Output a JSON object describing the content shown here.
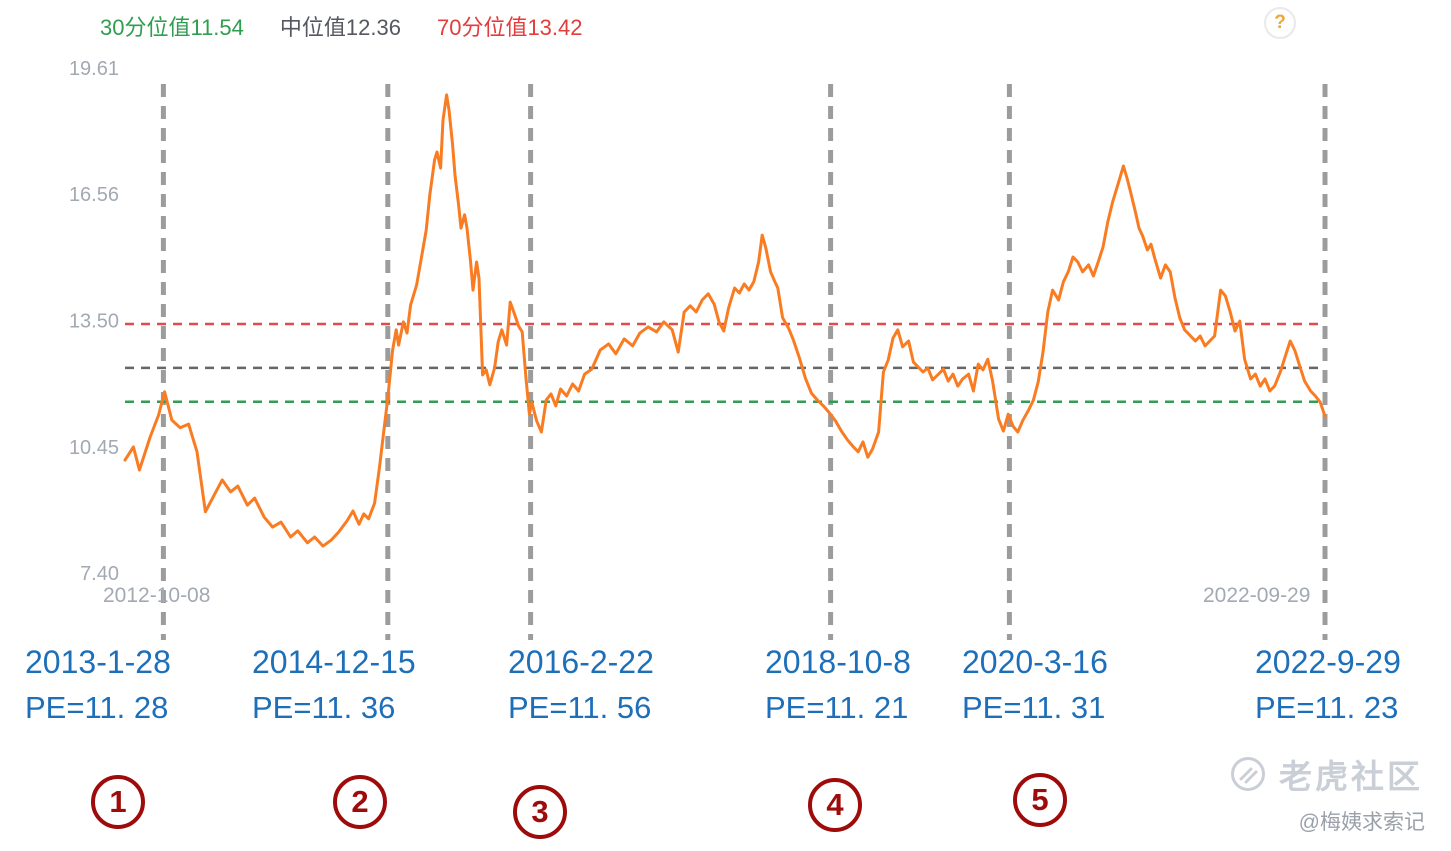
{
  "legend": {
    "p30": "30分位值11.54",
    "median": "中位值12.36",
    "p70": "70分位值13.42"
  },
  "help": {
    "glyph": "?"
  },
  "colors": {
    "line": "#f97c22",
    "vertical_marker": "#9c9c9c",
    "p30_line": "#2f9e50",
    "median_line": "#666666",
    "p70_line": "#e34b4b",
    "annotation_blue": "#1d6fba",
    "badge_red": "#9e0b0b"
  },
  "watermark": {
    "brand": "老虎社区",
    "handle": "@梅姨求索记"
  },
  "chart_data": {
    "type": "line",
    "title": "",
    "series_name": "PE",
    "ylim": [
      7.4,
      19.61
    ],
    "x_start_label": "2012-10-08",
    "x_end_label": "2022-09-29",
    "grid": false,
    "legend_position": "top-left",
    "y_ticks": [
      {
        "label": "19.61",
        "value": 19.61
      },
      {
        "label": "16.56",
        "value": 16.56
      },
      {
        "label": "13.50",
        "value": 13.5
      },
      {
        "label": "10.45",
        "value": 10.45
      },
      {
        "label": "7.40",
        "value": 7.4
      }
    ],
    "reference_lines": [
      {
        "label": "30分位值",
        "value": 11.54,
        "color": "#2f9e50"
      },
      {
        "label": "中位值",
        "value": 12.36,
        "color": "#666666"
      },
      {
        "label": "70分位值",
        "value": 13.42,
        "color": "#e34b4b"
      }
    ],
    "markers": [
      {
        "num": "1",
        "date": "2013-1-28",
        "pe_label": "PE=11. 28",
        "pe_value": 11.28,
        "x_frac": 0.032
      },
      {
        "num": "2",
        "date": "2014-12-15",
        "pe_label": "PE=11. 36",
        "pe_value": 11.36,
        "x_frac": 0.219
      },
      {
        "num": "3",
        "date": "2016-2-22",
        "pe_label": "PE=11. 56",
        "pe_value": 11.56,
        "x_frac": 0.338
      },
      {
        "num": "4",
        "date": "2018-10-8",
        "pe_label": "PE=11. 21",
        "pe_value": 11.21,
        "x_frac": 0.588
      },
      {
        "num": "5",
        "date": "2020-3-16",
        "pe_label": "PE=11. 31",
        "pe_value": 11.31,
        "x_frac": 0.737
      },
      {
        "date": "2022-9-29",
        "pe_label": "PE=11. 23",
        "pe_value": 11.23,
        "x_frac": 1.0
      }
    ],
    "points": [
      [
        0.0,
        10.13
      ],
      [
        0.007,
        10.45
      ],
      [
        0.012,
        9.89
      ],
      [
        0.021,
        10.69
      ],
      [
        0.028,
        11.22
      ],
      [
        0.033,
        11.78
      ],
      [
        0.039,
        11.1
      ],
      [
        0.046,
        10.91
      ],
      [
        0.053,
        11.0
      ],
      [
        0.06,
        10.33
      ],
      [
        0.067,
        8.88
      ],
      [
        0.073,
        9.21
      ],
      [
        0.081,
        9.65
      ],
      [
        0.088,
        9.36
      ],
      [
        0.094,
        9.5
      ],
      [
        0.102,
        9.04
      ],
      [
        0.108,
        9.21
      ],
      [
        0.116,
        8.75
      ],
      [
        0.123,
        8.51
      ],
      [
        0.13,
        8.63
      ],
      [
        0.138,
        8.27
      ],
      [
        0.144,
        8.42
      ],
      [
        0.152,
        8.13
      ],
      [
        0.158,
        8.27
      ],
      [
        0.165,
        8.05
      ],
      [
        0.172,
        8.2
      ],
      [
        0.178,
        8.39
      ],
      [
        0.185,
        8.66
      ],
      [
        0.19,
        8.9
      ],
      [
        0.195,
        8.58
      ],
      [
        0.199,
        8.83
      ],
      [
        0.203,
        8.71
      ],
      [
        0.208,
        9.09
      ],
      [
        0.212,
        9.94
      ],
      [
        0.216,
        10.91
      ],
      [
        0.219,
        11.63
      ],
      [
        0.223,
        12.79
      ],
      [
        0.226,
        13.28
      ],
      [
        0.228,
        12.91
      ],
      [
        0.232,
        13.47
      ],
      [
        0.235,
        13.2
      ],
      [
        0.238,
        13.88
      ],
      [
        0.243,
        14.36
      ],
      [
        0.247,
        15.02
      ],
      [
        0.251,
        15.69
      ],
      [
        0.254,
        16.54
      ],
      [
        0.258,
        17.39
      ],
      [
        0.26,
        17.58
      ],
      [
        0.263,
        17.19
      ],
      [
        0.265,
        18.35
      ],
      [
        0.268,
        18.96
      ],
      [
        0.27,
        18.6
      ],
      [
        0.273,
        17.75
      ],
      [
        0.275,
        17.02
      ],
      [
        0.278,
        16.3
      ],
      [
        0.28,
        15.74
      ],
      [
        0.283,
        16.06
      ],
      [
        0.285,
        15.74
      ],
      [
        0.288,
        14.92
      ],
      [
        0.29,
        14.24
      ],
      [
        0.293,
        14.92
      ],
      [
        0.295,
        14.53
      ],
      [
        0.298,
        12.19
      ],
      [
        0.301,
        12.31
      ],
      [
        0.304,
        11.95
      ],
      [
        0.308,
        12.36
      ],
      [
        0.311,
        12.99
      ],
      [
        0.314,
        13.28
      ],
      [
        0.318,
        12.91
      ],
      [
        0.321,
        13.95
      ],
      [
        0.324,
        13.71
      ],
      [
        0.328,
        13.37
      ],
      [
        0.331,
        13.23
      ],
      [
        0.334,
        12.16
      ],
      [
        0.337,
        11.24
      ],
      [
        0.339,
        11.53
      ],
      [
        0.343,
        11.08
      ],
      [
        0.347,
        10.81
      ],
      [
        0.351,
        11.58
      ],
      [
        0.355,
        11.73
      ],
      [
        0.359,
        11.44
      ],
      [
        0.363,
        11.85
      ],
      [
        0.368,
        11.68
      ],
      [
        0.373,
        11.97
      ],
      [
        0.378,
        11.8
      ],
      [
        0.383,
        12.21
      ],
      [
        0.389,
        12.33
      ],
      [
        0.396,
        12.79
      ],
      [
        0.403,
        12.94
      ],
      [
        0.409,
        12.7
      ],
      [
        0.416,
        13.06
      ],
      [
        0.423,
        12.89
      ],
      [
        0.429,
        13.2
      ],
      [
        0.436,
        13.35
      ],
      [
        0.443,
        13.23
      ],
      [
        0.449,
        13.47
      ],
      [
        0.456,
        13.28
      ],
      [
        0.461,
        12.74
      ],
      [
        0.466,
        13.71
      ],
      [
        0.471,
        13.86
      ],
      [
        0.476,
        13.71
      ],
      [
        0.481,
        14.0
      ],
      [
        0.486,
        14.15
      ],
      [
        0.491,
        13.9
      ],
      [
        0.495,
        13.47
      ],
      [
        0.499,
        13.25
      ],
      [
        0.503,
        13.81
      ],
      [
        0.508,
        14.29
      ],
      [
        0.512,
        14.17
      ],
      [
        0.516,
        14.39
      ],
      [
        0.52,
        14.24
      ],
      [
        0.524,
        14.44
      ],
      [
        0.528,
        14.92
      ],
      [
        0.531,
        15.57
      ],
      [
        0.534,
        15.26
      ],
      [
        0.538,
        14.68
      ],
      [
        0.541,
        14.48
      ],
      [
        0.544,
        14.29
      ],
      [
        0.548,
        13.57
      ],
      [
        0.553,
        13.32
      ],
      [
        0.557,
        13.03
      ],
      [
        0.562,
        12.6
      ],
      [
        0.567,
        12.11
      ],
      [
        0.572,
        11.75
      ],
      [
        0.577,
        11.58
      ],
      [
        0.582,
        11.44
      ],
      [
        0.587,
        11.27
      ],
      [
        0.592,
        11.08
      ],
      [
        0.597,
        10.83
      ],
      [
        0.602,
        10.62
      ],
      [
        0.607,
        10.45
      ],
      [
        0.611,
        10.33
      ],
      [
        0.615,
        10.57
      ],
      [
        0.619,
        10.2
      ],
      [
        0.623,
        10.4
      ],
      [
        0.628,
        10.81
      ],
      [
        0.632,
        12.26
      ],
      [
        0.636,
        12.55
      ],
      [
        0.64,
        13.08
      ],
      [
        0.644,
        13.28
      ],
      [
        0.648,
        12.87
      ],
      [
        0.653,
        13.01
      ],
      [
        0.657,
        12.5
      ],
      [
        0.661,
        12.38
      ],
      [
        0.665,
        12.26
      ],
      [
        0.669,
        12.36
      ],
      [
        0.673,
        12.07
      ],
      [
        0.678,
        12.21
      ],
      [
        0.682,
        12.33
      ],
      [
        0.686,
        12.04
      ],
      [
        0.69,
        12.21
      ],
      [
        0.694,
        11.92
      ],
      [
        0.698,
        12.09
      ],
      [
        0.703,
        12.21
      ],
      [
        0.707,
        11.8
      ],
      [
        0.711,
        12.45
      ],
      [
        0.715,
        12.31
      ],
      [
        0.719,
        12.57
      ],
      [
        0.723,
        12.04
      ],
      [
        0.728,
        11.12
      ],
      [
        0.732,
        10.83
      ],
      [
        0.736,
        11.24
      ],
      [
        0.74,
        10.95
      ],
      [
        0.744,
        10.81
      ],
      [
        0.748,
        11.08
      ],
      [
        0.753,
        11.34
      ],
      [
        0.757,
        11.58
      ],
      [
        0.761,
        12.02
      ],
      [
        0.765,
        12.74
      ],
      [
        0.769,
        13.71
      ],
      [
        0.773,
        14.24
      ],
      [
        0.778,
        14.0
      ],
      [
        0.782,
        14.44
      ],
      [
        0.786,
        14.68
      ],
      [
        0.79,
        15.04
      ],
      [
        0.794,
        14.92
      ],
      [
        0.798,
        14.68
      ],
      [
        0.803,
        14.85
      ],
      [
        0.807,
        14.58
      ],
      [
        0.811,
        14.92
      ],
      [
        0.815,
        15.28
      ],
      [
        0.819,
        15.89
      ],
      [
        0.823,
        16.37
      ],
      [
        0.828,
        16.85
      ],
      [
        0.832,
        17.24
      ],
      [
        0.835,
        16.95
      ],
      [
        0.838,
        16.61
      ],
      [
        0.842,
        16.13
      ],
      [
        0.845,
        15.74
      ],
      [
        0.848,
        15.55
      ],
      [
        0.852,
        15.21
      ],
      [
        0.855,
        15.35
      ],
      [
        0.858,
        15.02
      ],
      [
        0.863,
        14.53
      ],
      [
        0.867,
        14.85
      ],
      [
        0.871,
        14.68
      ],
      [
        0.875,
        14.05
      ],
      [
        0.879,
        13.57
      ],
      [
        0.883,
        13.28
      ],
      [
        0.888,
        13.13
      ],
      [
        0.892,
        13.01
      ],
      [
        0.896,
        13.13
      ],
      [
        0.9,
        12.89
      ],
      [
        0.904,
        13.01
      ],
      [
        0.908,
        13.13
      ],
      [
        0.913,
        14.24
      ],
      [
        0.917,
        14.1
      ],
      [
        0.921,
        13.71
      ],
      [
        0.925,
        13.25
      ],
      [
        0.929,
        13.49
      ],
      [
        0.933,
        12.57
      ],
      [
        0.938,
        12.09
      ],
      [
        0.942,
        12.21
      ],
      [
        0.946,
        11.92
      ],
      [
        0.95,
        12.09
      ],
      [
        0.954,
        11.8
      ],
      [
        0.958,
        11.92
      ],
      [
        0.963,
        12.28
      ],
      [
        0.967,
        12.65
      ],
      [
        0.971,
        13.01
      ],
      [
        0.975,
        12.77
      ],
      [
        0.979,
        12.4
      ],
      [
        0.983,
        12.04
      ],
      [
        0.988,
        11.8
      ],
      [
        0.992,
        11.68
      ],
      [
        0.996,
        11.53
      ],
      [
        1.0,
        11.19
      ]
    ]
  }
}
